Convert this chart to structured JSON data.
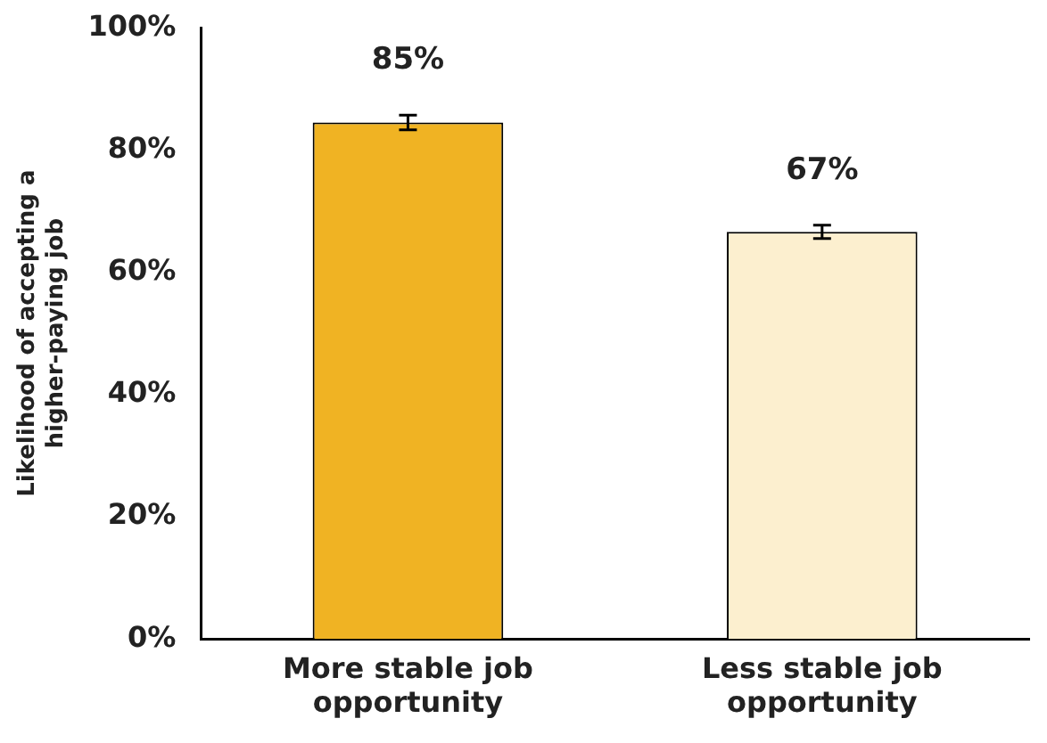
{
  "chart_data": {
    "type": "bar",
    "ylabel": "Likelihood of accepting a higher-paying job",
    "categories": [
      "More stable job opportunity",
      "Less stable job opportunity"
    ],
    "values": [
      84.5,
      66.6
    ],
    "colors": [
      "#f0b323",
      "#fcefcf"
    ],
    "errors": [
      1.2,
      1.1
    ],
    "value_labels": [
      "85%",
      "67%"
    ],
    "ylim": [
      0,
      100
    ],
    "yticks": [
      {
        "value": 0,
        "label": "0%"
      },
      {
        "value": 20,
        "label": "20%"
      },
      {
        "value": 40,
        "label": "40%"
      },
      {
        "value": 60,
        "label": "60%"
      },
      {
        "value": 80,
        "label": "80%"
      },
      {
        "value": 100,
        "label": "100%"
      }
    ],
    "grid": false,
    "legend": false
  }
}
